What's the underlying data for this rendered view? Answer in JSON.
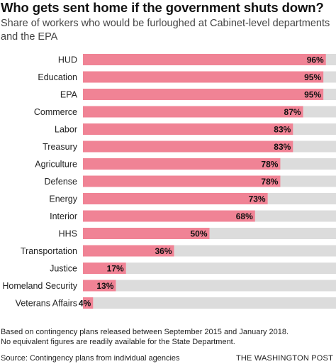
{
  "title": "Who gets sent home if the government shuts down?",
  "subtitle": "Share of workers who would be furloughed at Cabinet-level departments and the EPA",
  "notes": [
    "Based on contingency plans released between September 2015 and January 2018.",
    "No equivalent figures are readily available for the State Department."
  ],
  "source": "Source: Contingency plans from individual agencies",
  "credit": "THE WASHINGTON POST",
  "colors": {
    "bar": "#f08395",
    "track": "#dcdcdc"
  },
  "chart_data": {
    "type": "bar",
    "orientation": "horizontal",
    "title": "Who gets sent home if the government shuts down?",
    "subtitle": "Share of workers who would be furloughed at Cabinet-level departments and the EPA",
    "categories": [
      "HUD",
      "Education",
      "EPA",
      "Commerce",
      "Labor",
      "Treasury",
      "Agriculture",
      "Defense",
      "Energy",
      "Interior",
      "HHS",
      "Transportation",
      "Justice",
      "Homeland Security",
      "Veterans Affairs"
    ],
    "values": [
      96,
      95,
      95,
      87,
      83,
      83,
      78,
      78,
      73,
      68,
      50,
      36,
      17,
      13,
      4
    ],
    "value_labels": [
      "96%",
      "95%",
      "95%",
      "87%",
      "83%",
      "83%",
      "78%",
      "78%",
      "73%",
      "68%",
      "50%",
      "36%",
      "17%",
      "13%",
      "4%"
    ],
    "xlim": [
      0,
      100
    ],
    "xlabel": "",
    "ylabel": "",
    "grid": false,
    "legend": "none"
  }
}
